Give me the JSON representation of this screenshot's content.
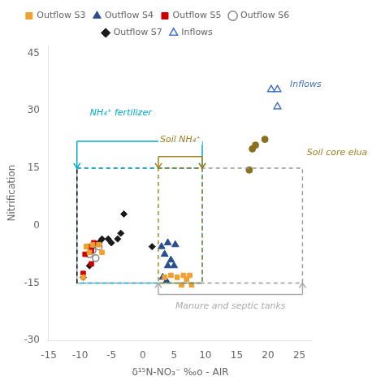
{
  "chart_data": {
    "type": "scatter",
    "xlabel": "δ¹⁵N-NO₃⁻ ‰o - AIR",
    "ylabel": "Nitrification",
    "xlim": [
      -15,
      27
    ],
    "ylim": [
      -30,
      47
    ],
    "xticks": [
      -15,
      -10,
      -5,
      0,
      5,
      10,
      15,
      20,
      25
    ],
    "yticks": [
      -30,
      -15,
      0,
      15,
      30,
      45
    ],
    "grid": false,
    "legend": "top",
    "series": [
      {
        "name": "Outflow S3",
        "color": "#f0a030",
        "marker": "square",
        "values": [
          [
            -9.5,
            -13.5
          ],
          [
            -9.0,
            -5.5
          ],
          [
            -8.5,
            -7.0
          ],
          [
            -8.0,
            -5.0
          ],
          [
            -7.0,
            -5.0
          ],
          [
            -6.5,
            -7.0
          ],
          [
            3.5,
            -13.5
          ],
          [
            4.5,
            -13.0
          ],
          [
            5.5,
            -13.5
          ],
          [
            6.5,
            -13.0
          ],
          [
            7.0,
            -14.0
          ],
          [
            7.5,
            -13.0
          ],
          [
            6.2,
            -15.5
          ],
          [
            7.8,
            -15.5
          ]
        ]
      },
      {
        "name": "Outflow S4",
        "color": "#2a4f8f",
        "marker": "triangle",
        "values": [
          [
            3.0,
            -5.5
          ],
          [
            4.0,
            -4.5
          ],
          [
            3.5,
            -7.5
          ],
          [
            4.5,
            -9.0
          ],
          [
            5.0,
            -10.5
          ],
          [
            4.0,
            -10.5
          ],
          [
            3.2,
            -13.5
          ],
          [
            3.8,
            -14.5
          ],
          [
            5.2,
            -5.0
          ]
        ]
      },
      {
        "name": "Outflow S5",
        "color": "#cc0000",
        "marker": "square",
        "values": [
          [
            -9.5,
            -12.5
          ],
          [
            -8.2,
            -6.5
          ],
          [
            -8.8,
            -5.5
          ],
          [
            -7.8,
            -4.5
          ],
          [
            -9.2,
            -7.5
          ],
          [
            -8.2,
            -10.0
          ]
        ]
      },
      {
        "name": "Outflow S6",
        "color": "#888888",
        "marker": "open_circle",
        "values": [
          [
            -8.0,
            -6.5
          ],
          [
            -7.0,
            -5.5
          ],
          [
            -8.5,
            -7.5
          ],
          [
            -7.5,
            -8.5
          ]
        ]
      },
      {
        "name": "Outflow S7",
        "color": "#1a1a1a",
        "marker": "diamond",
        "values": [
          [
            -9.5,
            -13.5
          ],
          [
            -8.5,
            -10.5
          ],
          [
            -8.0,
            -5.5
          ],
          [
            -7.0,
            -4.5
          ],
          [
            -6.5,
            -3.5
          ],
          [
            -5.5,
            -3.5
          ],
          [
            -5.0,
            -4.5
          ],
          [
            -4.0,
            -3.5
          ],
          [
            -3.5,
            -2.0
          ],
          [
            -3.0,
            3.0
          ],
          [
            1.5,
            -5.5
          ]
        ]
      },
      {
        "name": "Inflows",
        "color": "#4472c4",
        "marker": "open_triangle",
        "values": [
          [
            20.5,
            35.5
          ],
          [
            21.5,
            35.5
          ],
          [
            21.5,
            31.0
          ]
        ]
      },
      {
        "color": "#8b7020",
        "marker": "circle",
        "values": [
          [
            17.0,
            14.5
          ],
          [
            18.0,
            21.0
          ],
          [
            19.5,
            22.5
          ],
          [
            17.5,
            20.0
          ]
        ]
      }
    ],
    "boxes": [
      {
        "x": [
          -10.5,
          25.5
        ],
        "y": [
          -15,
          15
        ],
        "color": "#999999",
        "line_style": "dashed"
      },
      {
        "x": [
          -10.5,
          9.5
        ],
        "y": [
          -15,
          15
        ],
        "color": "#00aacc",
        "line_style": "dashed"
      },
      {
        "x": [
          2.5,
          9.5
        ],
        "y": [
          -15,
          15
        ],
        "color": "#a08020",
        "line_style": "dashed"
      }
    ],
    "lines": [
      {
        "x": [
          -10.5,
          -10.5
        ],
        "y": [
          -15,
          15
        ],
        "color": "#000000",
        "line_style": "dashed"
      }
    ],
    "brackets": [
      {
        "x": [
          -10.5,
          9.5
        ],
        "from_y": 22,
        "to_y": 15,
        "color": "#00aacc"
      },
      {
        "x": [
          2.5,
          9.5
        ],
        "from_y": 18,
        "to_y": 15,
        "color": "#a08020"
      },
      {
        "x": [
          2.5,
          25.5
        ],
        "from_y": -18,
        "to_y": -15,
        "color": "#aaaaaa"
      }
    ],
    "annotations": [
      {
        "text": "NH₄⁺ fertilizer",
        "x": -3.5,
        "y": 28,
        "color": "#00aacc",
        "anchor": "bottom"
      },
      {
        "text": "Soil NH₄⁺",
        "x": 6.0,
        "y": 21,
        "color": "#a08020",
        "anchor": "bottom"
      },
      {
        "text": "Manure and septic tanks",
        "x": 14.0,
        "y": -19.5,
        "color": "#aaaaaa",
        "anchor": "top"
      },
      {
        "text": "Soil core elua",
        "x": 26.2,
        "y": 19,
        "color": "#a08020",
        "anchor": "left"
      },
      {
        "text": "Inflows",
        "x": 23.5,
        "y": 37,
        "color": "#4472c4",
        "anchor": "left"
      }
    ]
  }
}
